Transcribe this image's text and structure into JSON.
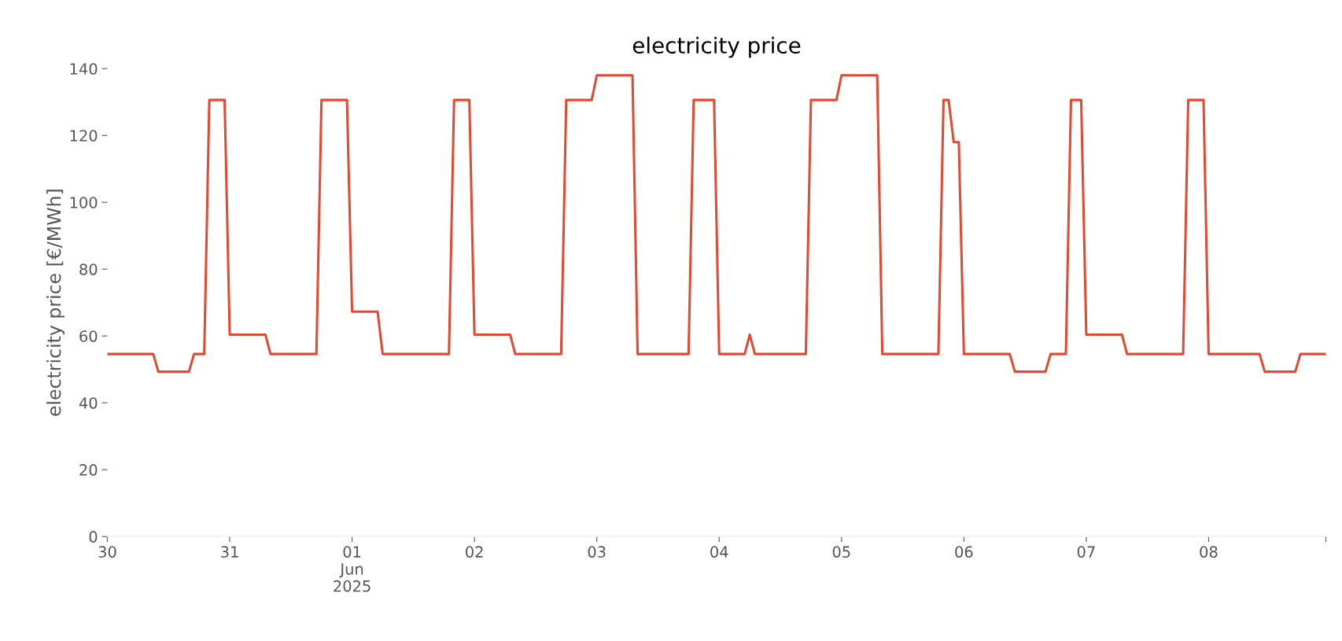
{
  "chart_data": {
    "type": "line",
    "title": "electricity price",
    "ylabel": "electricity price [€/MWh]",
    "x": [
      "2025-05-30T00:00",
      "2025-05-30T09:00",
      "2025-05-30T10:00",
      "2025-05-30T16:00",
      "2025-05-30T17:00",
      "2025-05-30T19:00",
      "2025-05-30T20:00",
      "2025-05-30T23:00",
      "2025-05-31T00:00",
      "2025-05-31T07:00",
      "2025-05-31T08:00",
      "2025-05-31T17:00",
      "2025-05-31T18:00",
      "2025-05-31T23:00",
      "2025-06-01T00:00",
      "2025-06-01T05:00",
      "2025-06-01T06:00",
      "2025-06-01T19:00",
      "2025-06-01T20:00",
      "2025-06-01T23:00",
      "2025-06-02T00:00",
      "2025-06-02T07:00",
      "2025-06-02T08:00",
      "2025-06-02T17:00",
      "2025-06-02T18:00",
      "2025-06-02T23:00",
      "2025-06-03T00:00",
      "2025-06-03T07:00",
      "2025-06-03T08:00",
      "2025-06-03T18:00",
      "2025-06-03T19:00",
      "2025-06-03T23:00",
      "2025-06-04T00:00",
      "2025-06-04T05:00",
      "2025-06-04T06:00",
      "2025-06-04T07:00",
      "2025-06-04T17:00",
      "2025-06-04T18:00",
      "2025-06-04T23:00",
      "2025-06-05T00:00",
      "2025-06-05T07:00",
      "2025-06-05T08:00",
      "2025-06-05T19:00",
      "2025-06-05T20:00",
      "2025-06-05T21:00",
      "2025-06-05T22:00",
      "2025-06-05T23:00",
      "2025-06-06T00:00",
      "2025-06-06T09:00",
      "2025-06-06T10:00",
      "2025-06-06T16:00",
      "2025-06-06T17:00",
      "2025-06-06T20:00",
      "2025-06-06T21:00",
      "2025-06-06T23:00",
      "2025-06-07T00:00",
      "2025-06-07T07:00",
      "2025-06-07T08:00",
      "2025-06-07T19:00",
      "2025-06-07T20:00",
      "2025-06-07T23:00",
      "2025-06-08T00:00",
      "2025-06-08T10:00",
      "2025-06-08T11:00",
      "2025-06-08T17:00",
      "2025-06-08T18:00",
      "2025-06-08T23:00"
    ],
    "series": [
      {
        "color": "#e24a33",
        "values": [
          54.6,
          54.6,
          49.3,
          49.3,
          54.6,
          54.6,
          130.6,
          130.6,
          60.4,
          60.4,
          54.6,
          54.6,
          130.6,
          130.6,
          67.3,
          67.3,
          54.6,
          54.6,
          130.6,
          130.6,
          60.4,
          60.4,
          54.6,
          54.6,
          130.6,
          130.6,
          138,
          138,
          54.6,
          54.6,
          130.6,
          130.6,
          54.6,
          54.6,
          60.4,
          54.6,
          54.6,
          130.6,
          130.6,
          138,
          138,
          54.6,
          54.6,
          130.6,
          130.6,
          118,
          118,
          54.6,
          54.6,
          49.3,
          49.3,
          54.6,
          54.6,
          130.6,
          130.6,
          60.4,
          60.4,
          54.6,
          54.6,
          130.6,
          130.6,
          54.6,
          54.6,
          49.3,
          49.3,
          54.6,
          54.6
        ]
      }
    ],
    "xlim": [
      "2025-05-30T00:00",
      "2025-06-08T23:00"
    ],
    "xticks": [
      {
        "value": "2025-05-30",
        "label": "30"
      },
      {
        "value": "2025-05-31",
        "label": "31"
      },
      {
        "value": "2025-06-01",
        "label": "01\nJun\n2025"
      },
      {
        "value": "2025-06-02",
        "label": "02"
      },
      {
        "value": "2025-06-03",
        "label": "03"
      },
      {
        "value": "2025-06-04",
        "label": "04"
      },
      {
        "value": "2025-06-05",
        "label": "05"
      },
      {
        "value": "2025-06-06",
        "label": "06"
      },
      {
        "value": "2025-06-07",
        "label": "07"
      },
      {
        "value": "2025-06-08",
        "label": "08"
      },
      {
        "value": "2025-06-08T23:00",
        "label": null
      }
    ],
    "ylim": [
      0,
      140
    ],
    "yticks": [
      0,
      20,
      40,
      60,
      80,
      100,
      120,
      140
    ],
    "grid": false,
    "legend": false,
    "marker": "none",
    "line_style": "solid"
  }
}
